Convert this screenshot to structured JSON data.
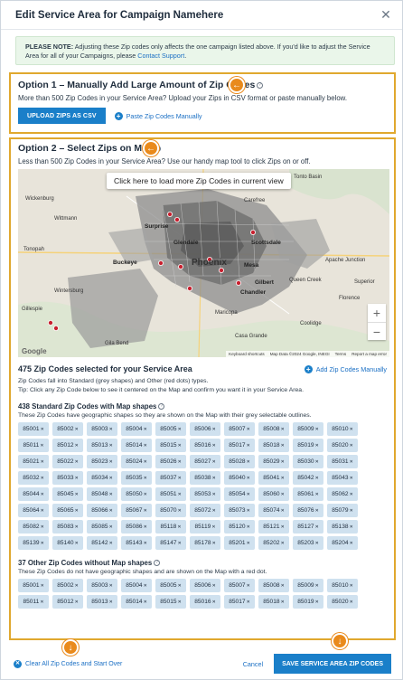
{
  "header": {
    "title": "Edit Service Area for Campaign Namehere",
    "close_icon": "close-icon"
  },
  "note": {
    "label": "PLEASE NOTE:",
    "text": " Adjusting these Zip codes only affects the one campaign listed above. If you'd like to adjust the Service Area for all of your Campaigns, please ",
    "link": "Contact Support",
    "end": "."
  },
  "option1": {
    "title": "Option 1 – Manually Add Large Amount of Zip Codes",
    "subtitle": "More than 500 Zip Codes in your Service Area? Upload your Zips in CSV format or paste manually below.",
    "upload_label": "UPLOAD ZIPS AS CSV",
    "paste_label": "Paste Zip Codes Manually"
  },
  "option2": {
    "title": "Option 2 – Select Zips on Map",
    "subtitle": "Less than 500 Zip Codes in your Service Area? Use our handy map tool to click Zips on or off."
  },
  "map": {
    "load_more_label": "Click here to load more Zip Codes in current view",
    "labels": {
      "tonto": "Tonto Basin",
      "wickenburg": "Wickenburg",
      "carefree": "Carefree",
      "surprise": "Surprise",
      "wittmann": "Wittmann",
      "glendale": "Glendale",
      "scottsdale": "Scottsdale",
      "tonopah": "Tonopah",
      "buckeye": "Buckeye",
      "phoenix": "Phoenix",
      "mesa": "Mesa",
      "apache": "Apache Junction",
      "queencreek": "Queen Creek",
      "gilbert": "Gilbert",
      "superior": "Superior",
      "chandler": "Chandler",
      "maricopa": "Maricopa",
      "florence": "Florence",
      "casagrande": "Casa Grande",
      "coolidge": "Coolidge",
      "gila": "Gila Bend",
      "winters": "Wintersburg",
      "gillespie": "Gillespie"
    },
    "google": "Google",
    "footer": [
      "Keyboard shortcuts",
      "Map Data ©2024 Google, INEGI",
      "Terms",
      "Report a map error"
    ]
  },
  "selection": {
    "title": "475 Zip Codes selected for your Service Area",
    "add_label": "Add Zip Codes Manually",
    "desc1": "Zip Codes fall into Standard (grey shapes) and Other (red dots) types.",
    "desc2": "Tip: Click any Zip Code below to see it centered on the Map and confirm you want it in your Service Area."
  },
  "standard": {
    "title": "438 Standard Zip Codes with Map shapes",
    "desc": "These Zip Codes have geographic shapes so they are shown on the Map with their grey selectable outlines.",
    "zips": [
      "85001",
      "85002",
      "85003",
      "85004",
      "85005",
      "85006",
      "85007",
      "85008",
      "85009",
      "85010",
      "85011",
      "85012",
      "85013",
      "85014",
      "85015",
      "85016",
      "85017",
      "85018",
      "85019",
      "85020",
      "85021",
      "85022",
      "85023",
      "85024",
      "85026",
      "85027",
      "85028",
      "85029",
      "85030",
      "85031",
      "85032",
      "85033",
      "85034",
      "85035",
      "85037",
      "85038",
      "85040",
      "85041",
      "85042",
      "85043",
      "85044",
      "85045",
      "85048",
      "85050",
      "85051",
      "85053",
      "85054",
      "85060",
      "85061",
      "85062",
      "85064",
      "85065",
      "85066",
      "85067",
      "85070",
      "85072",
      "85073",
      "85074",
      "85076",
      "85079",
      "85082",
      "85083",
      "85085",
      "85086",
      "85118",
      "85119",
      "85120",
      "85121",
      "85127",
      "85138",
      "85139",
      "85140",
      "85142",
      "85143",
      "85147",
      "85178",
      "85201",
      "85202",
      "85203",
      "85204"
    ]
  },
  "other": {
    "title": "37 Other Zip Codes without Map shapes",
    "desc": "These Zip Codes do not have geographic shapes and are shown on the Map with a red dot.",
    "zips": [
      "85001",
      "85002",
      "85003",
      "85004",
      "85005",
      "85006",
      "85007",
      "85008",
      "85009",
      "85010",
      "85011",
      "85012",
      "85013",
      "85014",
      "85015",
      "85016",
      "85017",
      "85018",
      "85019",
      "85020"
    ]
  },
  "footer": {
    "clear_label": "Clear All Zip Codes and Start Over",
    "cancel_label": "Cancel",
    "save_label": "SAVE SERVICE AREA ZIP CODES"
  },
  "colors": {
    "accent": "#1a7fc9",
    "highlight": "#e0a82e",
    "badge": "#e98a1c",
    "chip": "#cfe1ef"
  }
}
